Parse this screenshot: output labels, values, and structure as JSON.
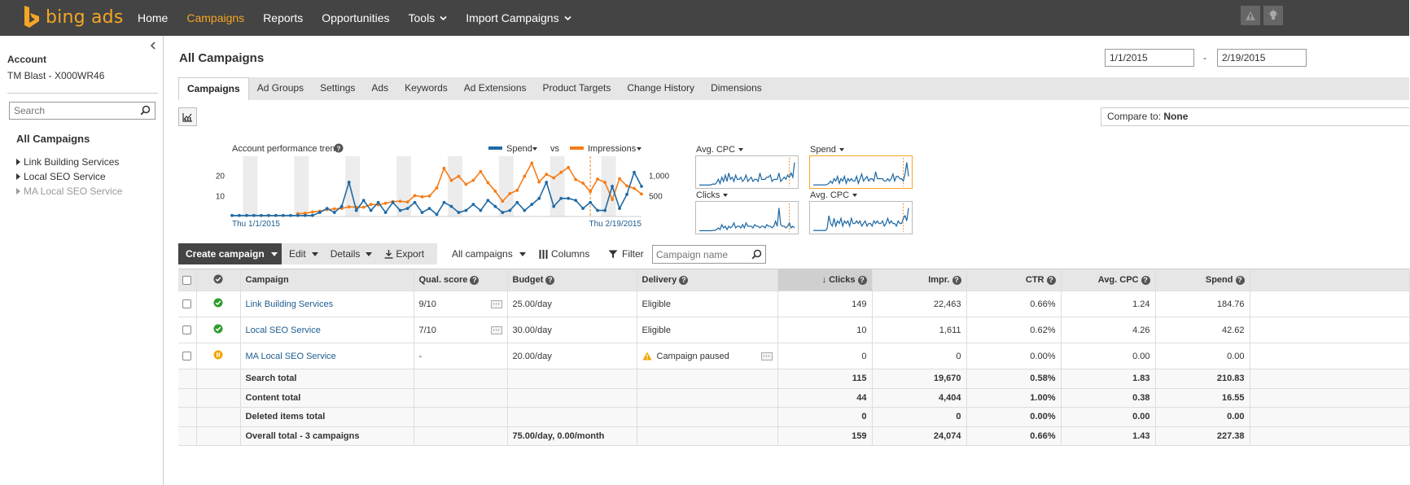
{
  "app": {
    "logo_text": "bing ads",
    "brand_color": "#f5a623"
  },
  "nav": {
    "items": [
      {
        "label": "Home",
        "active": false,
        "dropdown": false
      },
      {
        "label": "Campaigns",
        "active": true,
        "dropdown": false
      },
      {
        "label": "Reports",
        "active": false,
        "dropdown": false
      },
      {
        "label": "Opportunities",
        "active": false,
        "dropdown": false
      },
      {
        "label": "Tools",
        "active": false,
        "dropdown": true
      },
      {
        "label": "Import Campaigns",
        "active": false,
        "dropdown": true
      }
    ]
  },
  "sidebar": {
    "account_label": "Account",
    "account_name": "TM Blast - X000WR46",
    "search_placeholder": "Search",
    "all_campaigns": "All Campaigns",
    "items": [
      {
        "label": "Link Building Services",
        "dim": false
      },
      {
        "label": "Local SEO Service",
        "dim": false
      },
      {
        "label": "MA Local SEO Service",
        "dim": true
      }
    ]
  },
  "main": {
    "title": "All Campaigns",
    "date_from": "1/1/2015",
    "date_sep": "-",
    "date_to": "2/19/2015",
    "tabs": [
      "Campaigns",
      "Ad Groups",
      "Settings",
      "Ads",
      "Keywords",
      "Ad Extensions",
      "Product Targets",
      "Change History",
      "Dimensions"
    ],
    "active_tab": 0,
    "compare_label": "Compare to:",
    "compare_value": "None"
  },
  "chart_data": {
    "type": "line",
    "title": "Account performance trend",
    "legend": {
      "series1": "Spend",
      "vs": "vs",
      "series2": "Impressions"
    },
    "x_start_label": "Thu 1/1/2015",
    "x_end_label": "Thu 2/19/2015",
    "y_left_ticks": [
      "20",
      "10"
    ],
    "y_right_ticks": [
      "1,000",
      "500"
    ],
    "ylim_left": [
      0,
      30
    ],
    "ylim_right": [
      0,
      1500
    ],
    "colors": {
      "spend": "#1f6aa5",
      "impressions": "#f57c16"
    },
    "series": [
      {
        "name": "Spend",
        "axis": "left",
        "values": [
          0.5,
          0.5,
          0.5,
          0.5,
          0.5,
          0.5,
          0.5,
          0.5,
          0.5,
          0.5,
          0.5,
          0.5,
          2,
          4,
          2,
          5,
          17,
          3,
          8,
          3,
          7,
          2,
          7,
          3,
          4,
          7,
          2,
          4,
          1,
          7,
          5,
          2,
          3,
          6,
          3,
          8,
          5,
          2,
          3,
          7,
          3,
          6,
          9,
          17,
          5,
          9,
          9,
          8,
          4,
          7,
          3,
          3,
          15,
          4,
          11,
          22,
          15
        ]
      },
      {
        "name": "Impressions",
        "axis": "right",
        "values": [
          null,
          null,
          null,
          null,
          null,
          null,
          null,
          null,
          null,
          70,
          80,
          110,
          130,
          170,
          190,
          200,
          240,
          230,
          230,
          300,
          290,
          330,
          370,
          380,
          360,
          520,
          490,
          510,
          710,
          1200,
          900,
          1000,
          800,
          900,
          1120,
          840,
          630,
          380,
          570,
          650,
          1000,
          1330,
          860,
          1050,
          960,
          1100,
          1220,
          920,
          830,
          620,
          930,
          850,
          420,
          940,
          760,
          700,
          560
        ]
      }
    ],
    "mini_charts": [
      {
        "label": "Avg. CPC",
        "selected": false,
        "values": [
          0.3,
          0.3,
          0.3,
          0.3,
          0.3,
          0.3,
          0.3,
          0.5,
          0.8,
          0.6,
          1.5,
          3,
          1,
          4,
          2,
          5,
          2,
          6,
          3,
          4,
          2,
          5,
          3,
          3,
          4,
          2,
          3,
          5,
          2,
          3,
          4,
          2,
          3,
          3,
          2,
          6,
          3,
          3,
          3,
          4,
          4,
          5,
          2,
          3,
          3,
          3,
          6,
          2,
          3,
          4,
          3,
          5,
          4,
          6,
          4,
          11
        ]
      },
      {
        "label": "Spend",
        "selected": true,
        "values": [
          0.3,
          0.3,
          0.3,
          0.3,
          0.3,
          0.3,
          0.3,
          0.3,
          0.5,
          1,
          2,
          1,
          3,
          2,
          4,
          1,
          3,
          2,
          4,
          1,
          3,
          2,
          3,
          2,
          2,
          4,
          1,
          3,
          5,
          2,
          3,
          4,
          2,
          3,
          3,
          2,
          6,
          3,
          3,
          3,
          3,
          2,
          2,
          3,
          2,
          3,
          5,
          2,
          4,
          4,
          3,
          3,
          2,
          5,
          10,
          4
        ]
      },
      {
        "label": "Clicks",
        "selected": false,
        "values": [
          0.3,
          0.3,
          0.3,
          0.3,
          0.3,
          0.3,
          0.3,
          0.3,
          0.5,
          0.5,
          1,
          2,
          1,
          4,
          2,
          3,
          1,
          3,
          2,
          3,
          5,
          2,
          3,
          3,
          2,
          4,
          2,
          5,
          3,
          3,
          3,
          2,
          4,
          3,
          3,
          2,
          3,
          3,
          2,
          4,
          3,
          3,
          2,
          3,
          6,
          3,
          14,
          4,
          3,
          3,
          2,
          3,
          5,
          2,
          3,
          2
        ]
      },
      {
        "label": "Avg. CPC",
        "selected": false,
        "values": [
          0.3,
          0.3,
          0.3,
          0.3,
          0.3,
          0.3,
          0.3,
          0.3,
          1,
          6,
          3,
          2,
          5,
          2,
          4,
          3,
          5,
          2,
          4,
          3,
          4,
          2,
          5,
          3,
          3,
          4,
          3,
          4,
          2,
          3,
          4,
          2,
          3,
          3,
          2,
          4,
          3,
          4,
          3,
          3,
          4,
          2,
          3,
          5,
          3,
          4,
          3,
          3,
          2,
          4,
          3,
          3,
          5,
          6,
          4,
          9
        ]
      }
    ]
  },
  "toolbar": {
    "create_campaign": "Create campaign",
    "edit": "Edit",
    "details": "Details",
    "export": "Export",
    "scope": "All campaigns",
    "columns": "Columns",
    "filter": "Filter",
    "campaign_search_placeholder": "Campaign name"
  },
  "table": {
    "headers": {
      "campaign": "Campaign",
      "qual_score": "Qual. score",
      "budget": "Budget",
      "delivery": "Delivery",
      "clicks": "Clicks",
      "impr": "Impr.",
      "ctr": "CTR",
      "avg_cpc": "Avg. CPC",
      "spend": "Spend"
    },
    "status_colors": {
      "active": "#2e9d2e",
      "paused": "#f0a500"
    },
    "rows": [
      {
        "status": "active",
        "campaign": "Link Building Services",
        "qual_score": "9/10",
        "budget": "25.00/day",
        "delivery": "Eligible",
        "delivery_warn": false,
        "clicks": "149",
        "impr": "22,463",
        "ctr": "0.66%",
        "avg_cpc": "1.24",
        "spend": "184.76"
      },
      {
        "status": "active",
        "campaign": "Local SEO Service",
        "qual_score": "7/10",
        "budget": "30.00/day",
        "delivery": "Eligible",
        "delivery_warn": false,
        "clicks": "10",
        "impr": "1,611",
        "ctr": "0.62%",
        "avg_cpc": "4.26",
        "spend": "42.62"
      },
      {
        "status": "paused",
        "campaign": "MA Local SEO Service",
        "qual_score": "-",
        "budget": "20.00/day",
        "delivery": "Campaign paused",
        "delivery_warn": true,
        "clicks": "0",
        "impr": "0",
        "ctr": "0.00%",
        "avg_cpc": "0.00",
        "spend": "0.00"
      }
    ],
    "totals": [
      {
        "label": "Search total",
        "budget": "",
        "clicks": "115",
        "impr": "19,670",
        "ctr": "0.58%",
        "avg_cpc": "1.83",
        "spend": "210.83"
      },
      {
        "label": "Content total",
        "budget": "",
        "clicks": "44",
        "impr": "4,404",
        "ctr": "1.00%",
        "avg_cpc": "0.38",
        "spend": "16.55"
      },
      {
        "label": "Deleted items total",
        "budget": "",
        "clicks": "0",
        "impr": "0",
        "ctr": "0.00%",
        "avg_cpc": "0.00",
        "spend": "0.00"
      },
      {
        "label": "Overall total - 3 campaigns",
        "budget": "75.00/day, 0.00/month",
        "clicks": "159",
        "impr": "24,074",
        "ctr": "0.66%",
        "avg_cpc": "1.43",
        "spend": "227.38"
      }
    ]
  }
}
